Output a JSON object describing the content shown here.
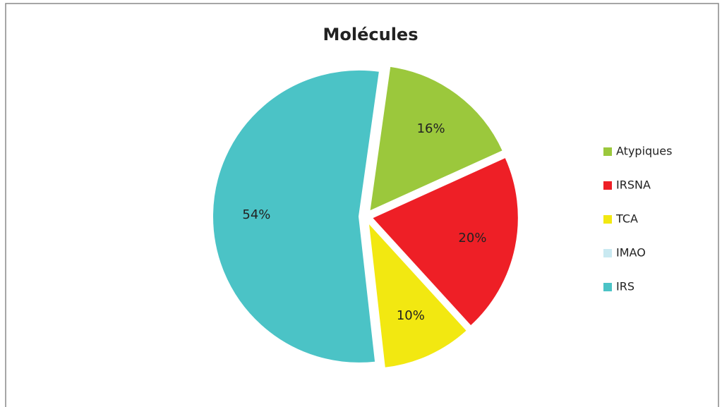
{
  "chart_data": {
    "type": "pie",
    "title": "Molécules",
    "categories": [
      "Atypiques",
      "IRSNA",
      "TCA",
      "IMAO",
      "IRS"
    ],
    "values": [
      16,
      20,
      10,
      0,
      54
    ],
    "value_labels": [
      "16%",
      "20%",
      "10%",
      null,
      "54%"
    ],
    "colors": [
      "#9bc83c",
      "#ee1f26",
      "#f2e811",
      "#c9e9f1",
      "#4bc3c6"
    ],
    "legend": "right"
  }
}
